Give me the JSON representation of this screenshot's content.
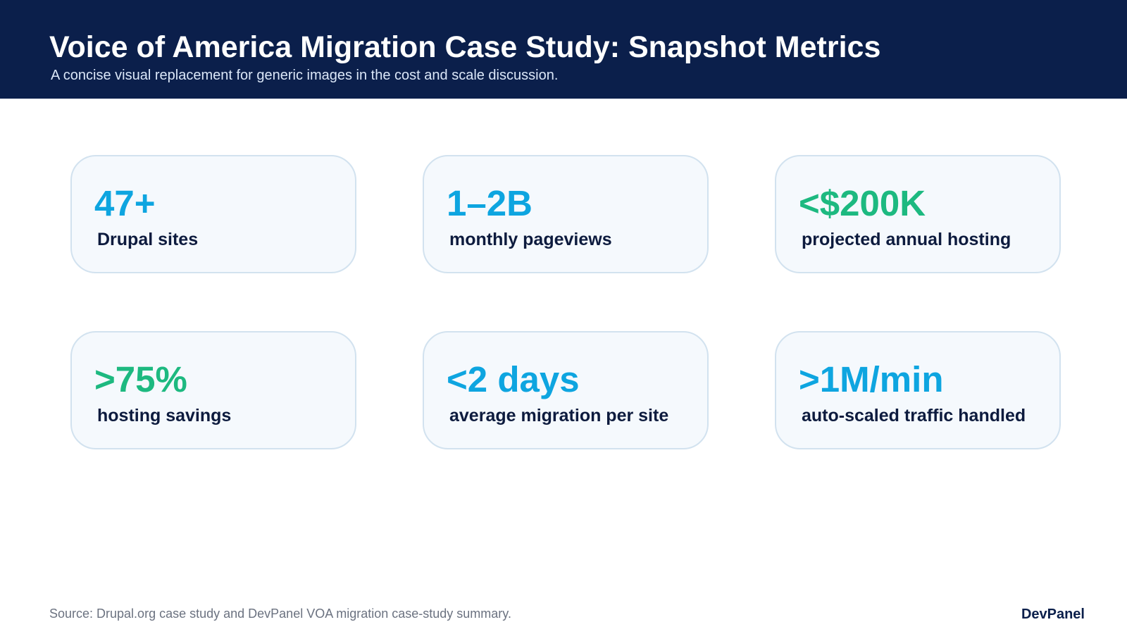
{
  "header": {
    "title": "Voice of America Migration Case Study: Snapshot Metrics",
    "subtitle": "A concise visual replacement for generic images in the cost and scale discussion."
  },
  "colors": {
    "header_bg": "#0b1f4b",
    "accent_blue": "#0ea5e0",
    "accent_green": "#1db980",
    "card_bg": "#f5f9fd",
    "card_border": "#d2e2ef",
    "label_text": "#0d1b3e"
  },
  "metrics": [
    {
      "value": "47+",
      "label": "Drupal sites",
      "color": "#0ea5e0"
    },
    {
      "value": "1–2B",
      "label": "monthly pageviews",
      "color": "#0ea5e0"
    },
    {
      "value": "<$200K",
      "label": "projected annual hosting",
      "color": "#1db980"
    },
    {
      "value": ">75%",
      "label": "hosting savings",
      "color": "#1db980"
    },
    {
      "value": "<2 days",
      "label": "average migration per site",
      "color": "#0ea5e0"
    },
    {
      "value": ">1M/min",
      "label": "auto-scaled traffic handled",
      "color": "#0ea5e0"
    }
  ],
  "footer": {
    "source": "Source: Drupal.org case study and DevPanel VOA migration case-study summary.",
    "brand": "DevPanel"
  }
}
